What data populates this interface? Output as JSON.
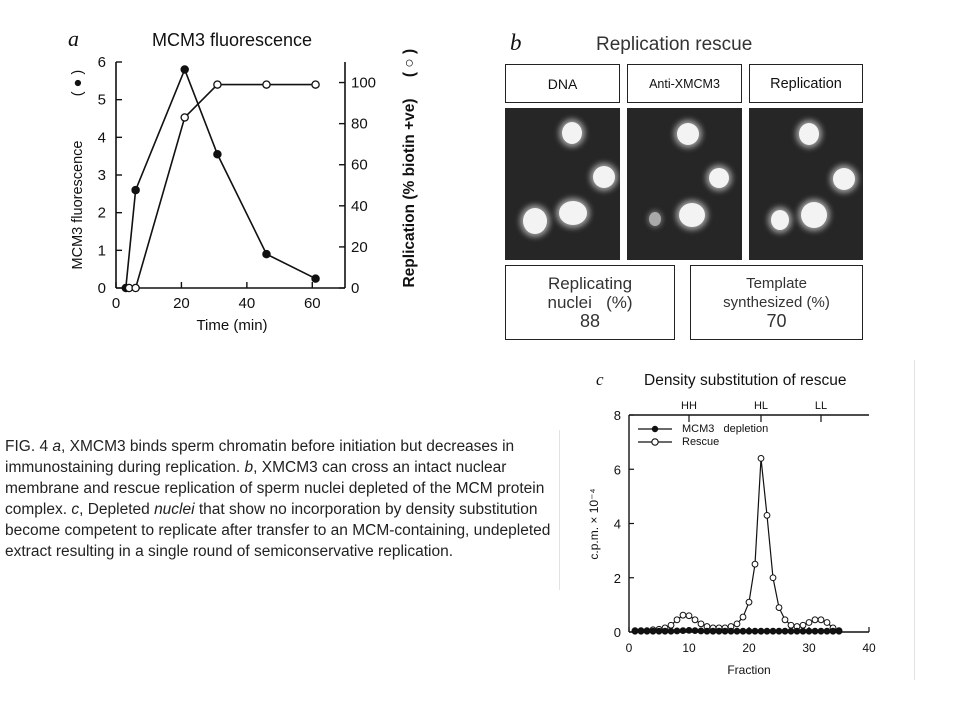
{
  "figure": {
    "caption": {
      "fig_label": "FIG. 4",
      "text_a1": " ",
      "a_label": "a",
      "text_a2": ", XMCM3 binds sperm chromatin before initiation but decreases in immunostaining during replication. ",
      "b_label": "b",
      "text_b": ", XMCM3 can cross an intact nuclear membrane and rescue replication of sperm nuclei depleted of the MCM protein complex. ",
      "c_label": "c",
      "text_c1": ", Depleted ",
      "c_italic": "nuclei",
      "text_c2": " that show no incorporation by density substitution become competent to replicate after transfer to an MCM-containing, undepleted extract resulting in a single round of semiconservative replication."
    },
    "panel_a": {
      "letter": "a",
      "title": "MCM3 fluorescence",
      "xlabel": "Time (min)",
      "ylabel_left": "MCM3 fluorescence",
      "ylabel_right": "Replication (% biotin +ve)",
      "left_marker_glyph": "(   ●   )",
      "right_marker_glyph": "(   ○   )"
    },
    "panel_b": {
      "letter": "b",
      "title": "Replication rescue",
      "labels": [
        "DNA",
        "Anti-XMCM3",
        "Replication"
      ],
      "stat_left": {
        "label_line1": "Replicating",
        "label_line2": "nuclei   (%)",
        "value": "88"
      },
      "stat_right": {
        "label_line1": "Template",
        "label_line2": "synthesized (%)",
        "value": "70"
      }
    },
    "panel_c": {
      "letter": "c",
      "title": "Density substitution of rescue",
      "xlabel": "Fraction",
      "ylabel": "c.p.m. × 10⁻⁴",
      "density_markers": [
        "HH",
        "HL",
        "LL"
      ],
      "legend": [
        "MCM3   depletion",
        "Rescue"
      ]
    }
  },
  "chart_data": [
    {
      "type": "line",
      "title": "MCM3 fluorescence",
      "xlabel": "Time (min)",
      "ylabel": "MCM3 fluorescence",
      "y2label": "Replication (% biotin +ve)",
      "xlim": [
        0,
        70
      ],
      "ylim": [
        0,
        6
      ],
      "y2lim": [
        0,
        110
      ],
      "xticks": [
        0,
        20,
        40,
        60
      ],
      "yticks": [
        0,
        1,
        2,
        3,
        4,
        5,
        6
      ],
      "y2ticks": [
        0,
        20,
        40,
        60,
        80,
        100
      ],
      "series": [
        {
          "name": "MCM3 fluorescence",
          "marker": "filled",
          "axis": "left",
          "x": [
            3,
            6,
            21,
            31,
            46,
            61
          ],
          "y": [
            0,
            2.6,
            5.8,
            3.55,
            0.9,
            0.25
          ]
        },
        {
          "name": "Replication (% biotin +ve)",
          "marker": "open",
          "axis": "right",
          "x": [
            4,
            6,
            21,
            31,
            46,
            61
          ],
          "y": [
            0,
            0,
            83,
            99,
            99,
            99
          ]
        }
      ]
    },
    {
      "type": "line",
      "title": "Density substitution of rescue",
      "xlabel": "Fraction",
      "ylabel": "c.p.m. × 10⁻⁴",
      "xlim": [
        0,
        40
      ],
      "ylim": [
        0,
        8
      ],
      "xticks": [
        0,
        10,
        20,
        30,
        40
      ],
      "yticks": [
        0,
        2,
        4,
        6,
        8
      ],
      "density_marker_positions": {
        "HH": 10,
        "HL": 22,
        "LL": 32
      },
      "series": [
        {
          "name": "MCM3   depletion",
          "marker": "filled",
          "x": [
            1,
            2,
            3,
            4,
            5,
            6,
            7,
            8,
            9,
            10,
            11,
            12,
            13,
            14,
            15,
            16,
            17,
            18,
            19,
            20,
            21,
            22,
            23,
            24,
            25,
            26,
            27,
            28,
            29,
            30,
            31,
            32,
            33,
            34,
            35
          ],
          "y": [
            0.03,
            0.03,
            0.03,
            0.03,
            0.03,
            0.03,
            0.03,
            0.04,
            0.05,
            0.06,
            0.05,
            0.04,
            0.03,
            0.03,
            0.03,
            0.03,
            0.03,
            0.03,
            0.03,
            0.03,
            0.03,
            0.03,
            0.03,
            0.03,
            0.03,
            0.03,
            0.03,
            0.03,
            0.03,
            0.03,
            0.03,
            0.03,
            0.03,
            0.03,
            0.03
          ]
        },
        {
          "name": "Rescue",
          "marker": "open",
          "x": [
            1,
            2,
            3,
            4,
            5,
            6,
            7,
            8,
            9,
            10,
            11,
            12,
            13,
            14,
            15,
            16,
            17,
            18,
            19,
            20,
            21,
            22,
            23,
            24,
            25,
            26,
            27,
            28,
            29,
            30,
            31,
            32,
            33,
            34,
            35
          ],
          "y": [
            0.05,
            0.05,
            0.05,
            0.08,
            0.1,
            0.15,
            0.25,
            0.45,
            0.62,
            0.6,
            0.45,
            0.3,
            0.2,
            0.15,
            0.15,
            0.15,
            0.2,
            0.3,
            0.55,
            1.1,
            2.5,
            6.4,
            4.3,
            2.0,
            0.9,
            0.45,
            0.25,
            0.2,
            0.25,
            0.35,
            0.45,
            0.45,
            0.35,
            0.15,
            0.05
          ]
        }
      ]
    }
  ]
}
